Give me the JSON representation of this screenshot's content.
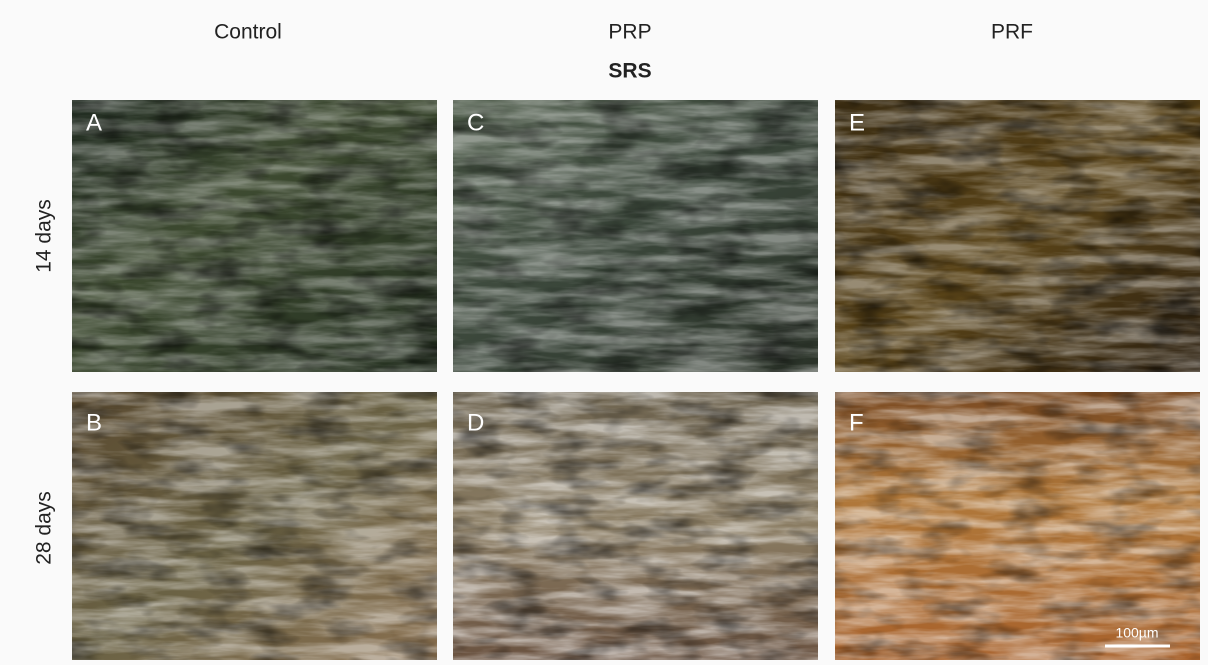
{
  "header": {
    "columns": [
      "Control",
      "PRP",
      "PRF"
    ],
    "title": "SRS"
  },
  "rows": [
    "14 days",
    "28 days"
  ],
  "panels": [
    [
      "A",
      "C",
      "E"
    ],
    [
      "B",
      "D",
      "F"
    ]
  ],
  "scale_bar": "100µm"
}
